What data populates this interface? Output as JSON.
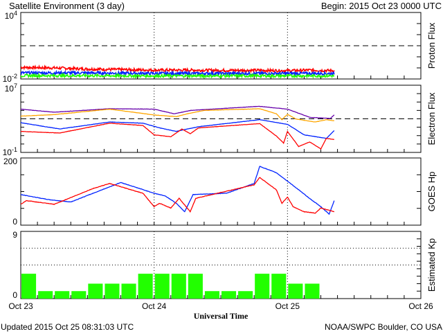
{
  "header": {
    "title": "Satellite Environment (3 day)",
    "begin": "Begin:  2015 Oct 23 0000 UTC"
  },
  "footer": {
    "updated": "Updated 2015 Oct 25 08:31:03 UTC",
    "credit": "NOAA/SWPC Boulder, CO USA"
  },
  "xaxis": {
    "label": "Universal Time",
    "units": "hours since 2015 Oct 23 0000 UTC",
    "range": [
      0,
      72
    ],
    "ticks": [
      {
        "value": 0,
        "label": "Oct 23"
      },
      {
        "value": 24,
        "label": "Oct 24"
      },
      {
        "value": 48,
        "label": "Oct 25"
      },
      {
        "value": 72,
        "label": "Oct 26"
      }
    ]
  },
  "colors": {
    "red": "#ff0000",
    "blue": "#0022ff",
    "green": "#22ff00",
    "purple": "#6600aa",
    "orange": "#ffa500"
  },
  "chart_data": [
    {
      "type": "line",
      "title": "Proton Flux",
      "ylabel": "Proton Flux",
      "yscale": "log",
      "ylim_log10": [
        -2,
        4
      ],
      "ytick_labels": {
        "top_base": "10",
        "top_exp": "4",
        "bottom_base": "10",
        "bottom_exp": "-2"
      },
      "threshold_log10": 1,
      "series": [
        {
          "name": "red",
          "color": "#ff0000",
          "x": [
            0,
            6,
            12,
            18,
            24,
            30,
            36,
            42,
            48,
            52,
            56.4
          ],
          "log10": [
            -0.95,
            -1.0,
            -1.1,
            -1.15,
            -1.2,
            -1.2,
            -1.22,
            -1.22,
            -1.25,
            -1.2,
            -1.25
          ]
        },
        {
          "name": "blue",
          "color": "#0022ff",
          "x": [
            0,
            12,
            24,
            36,
            48,
            56.4
          ],
          "log10": [
            -1.45,
            -1.45,
            -1.5,
            -1.5,
            -1.5,
            -1.5
          ]
        },
        {
          "name": "green",
          "color": "#22ff00",
          "x": [
            0,
            12,
            24,
            36,
            48,
            56.4
          ],
          "log10": [
            -1.7,
            -1.7,
            -1.72,
            -1.72,
            -1.72,
            -1.72
          ]
        }
      ]
    },
    {
      "type": "line",
      "title": "Electron Flux",
      "ylabel": "Electron Flux",
      "yscale": "log",
      "ylim_log10": [
        -1,
        7
      ],
      "ytick_labels": {
        "top_base": "10",
        "top_exp": "7",
        "bottom_base": "10",
        "bottom_exp": "-1"
      },
      "threshold_log10": 3,
      "series": [
        {
          "name": "purple",
          "color": "#6600aa",
          "x": [
            0,
            6,
            16,
            24,
            27.6,
            30.6,
            42.9,
            48,
            52,
            55.7,
            56.4
          ],
          "log10": [
            4.15,
            3.79,
            4.2,
            4.15,
            3.6,
            4.0,
            4.49,
            4.15,
            3.18,
            3.04,
            3.46
          ]
        },
        {
          "name": "orange",
          "color": "#ffa500",
          "x": [
            0,
            6,
            16,
            24,
            28,
            30,
            33,
            43,
            46,
            47,
            48,
            49.5,
            53,
            55,
            56.4
          ],
          "log10": [
            3.32,
            3.5,
            4.15,
            3.46,
            3.26,
            3.6,
            4.0,
            4.2,
            3.6,
            2.9,
            3.54,
            2.98,
            2.62,
            2.9,
            2.76
          ]
        },
        {
          "name": "blue",
          "color": "#0022ff",
          "x": [
            0,
            7,
            16,
            22,
            25,
            28,
            30,
            32,
            43,
            48,
            51,
            55,
            56.4
          ],
          "log10": [
            2.54,
            1.79,
            2.62,
            2.48,
            1.92,
            1.5,
            1.79,
            2.06,
            2.9,
            2.34,
            1.09,
            0.67,
            1.59
          ]
        },
        {
          "name": "red",
          "color": "#ff0000",
          "x": [
            0,
            7,
            16,
            22,
            24,
            27,
            29,
            30.5,
            32,
            43,
            46,
            47.3,
            48,
            50,
            52,
            54,
            55,
            56.4
          ],
          "log10": [
            1.5,
            1.31,
            2.48,
            2.2,
            1.09,
            0.87,
            1.79,
            1.23,
            1.92,
            2.43,
            0.95,
            0.11,
            1.5,
            -0.3,
            0.25,
            -0.58,
            0.67,
            0.53
          ]
        }
      ]
    },
    {
      "type": "line",
      "title": "GOES Hp",
      "ylabel": "GOES Hp",
      "ylim": [
        0,
        200
      ],
      "ytick_labels": {
        "top": "200",
        "bottom": "0"
      },
      "series": [
        {
          "name": "blue",
          "color": "#0022ff",
          "x": [
            0,
            5,
            9,
            18,
            24,
            26,
            28,
            29.5,
            31,
            37,
            42,
            43,
            46,
            48,
            52.5,
            54,
            55.5,
            56.4
          ],
          "y": [
            91,
            76,
            69,
            127,
            95,
            87,
            65,
            40,
            91,
            95,
            124,
            175,
            156,
            131,
            73,
            55,
            33,
            73
          ]
        },
        {
          "name": "red",
          "color": "#ff0000",
          "x": [
            0,
            1,
            6,
            13,
            16,
            22,
            24,
            25,
            27,
            28.5,
            30.5,
            31.5,
            42,
            43,
            46,
            47,
            48,
            49,
            51,
            53,
            54,
            56.4
          ],
          "y": [
            62,
            73,
            62,
            109,
            124,
            95,
            55,
            65,
            51,
            80,
            40,
            80,
            120,
            142,
            105,
            65,
            84,
            55,
            40,
            36,
            51,
            40
          ]
        }
      ]
    },
    {
      "type": "bar",
      "title": "Estimated Kp",
      "ylabel": "Estimated Kp",
      "ylim": [
        0,
        9
      ],
      "ytick_labels": {
        "top": "9",
        "bottom": "0"
      },
      "bar_hours": 3,
      "color": "#22ff00",
      "values": [
        3.33,
        1,
        1,
        1,
        2,
        2,
        2,
        3.33,
        3.33,
        3.33,
        3.33,
        1,
        1,
        1,
        3.33,
        3.33,
        2,
        2
      ]
    }
  ]
}
